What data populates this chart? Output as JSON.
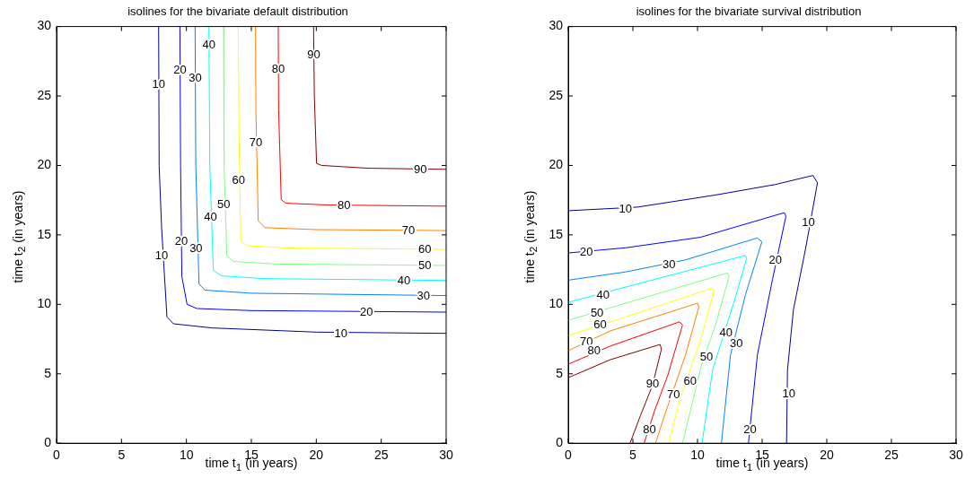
{
  "chart_data": [
    {
      "type": "line",
      "title": "isolines for the bivariate default distribution",
      "xlabel": "time t$_{1}$ (in years)",
      "ylabel": "time t$_{2}$ (in years)",
      "xlim": [
        0,
        30
      ],
      "ylim": [
        0,
        30
      ],
      "xticks": [
        0,
        5,
        10,
        15,
        20,
        25,
        30
      ],
      "yticks": [
        0,
        5,
        10,
        15,
        20,
        25,
        30
      ],
      "series": [
        {
          "color": "#00008f",
          "x": [
            7.86,
            7.9,
            8.09,
            8.5,
            9.0,
            12,
            20,
            30
          ],
          "values": [
            30,
            20,
            15.5,
            9.1,
            8.6,
            8.3,
            8.0,
            7.91
          ]
        },
        {
          "color": "#0000ff",
          "x": [
            9.5,
            9.55,
            9.65,
            10.05,
            10.8,
            15,
            30
          ],
          "values": [
            30,
            20,
            12,
            10.0,
            9.7,
            9.55,
            9.44
          ]
        },
        {
          "color": "#0080ff",
          "x": [
            10.67,
            10.72,
            10.97,
            11.43,
            15,
            30
          ],
          "values": [
            30,
            20,
            11.46,
            11.02,
            10.8,
            10.63
          ]
        },
        {
          "color": "#00ffff",
          "x": [
            11.73,
            11.8,
            12.07,
            12.7,
            16,
            30
          ],
          "values": [
            30,
            20,
            12.44,
            12.05,
            11.85,
            11.72
          ]
        },
        {
          "color": "#80ff80",
          "x": [
            12.86,
            12.9,
            13.11,
            13.62,
            17,
            30
          ],
          "values": [
            30,
            20,
            13.52,
            13.09,
            12.9,
            12.8
          ]
        },
        {
          "color": "#ffff00",
          "x": [
            13.99,
            14.05,
            14.19,
            14.65,
            18,
            30
          ],
          "values": [
            30,
            22,
            14.61,
            14.22,
            14.05,
            13.96
          ]
        },
        {
          "color": "#ff8000",
          "x": [
            15.32,
            15.35,
            15.53,
            16.04,
            20,
            30
          ],
          "values": [
            30,
            24,
            16.02,
            15.52,
            15.38,
            15.31
          ]
        },
        {
          "color": "#ff0000",
          "x": [
            17.07,
            17.1,
            17.3,
            17.65,
            21,
            30
          ],
          "values": [
            30,
            24,
            17.54,
            17.28,
            17.15,
            17.07
          ]
        },
        {
          "color": "#800000",
          "x": [
            19.79,
            19.85,
            20.02,
            20.41,
            24,
            30
          ],
          "values": [
            30,
            25,
            20.15,
            20.0,
            19.8,
            19.72
          ]
        }
      ],
      "annotations": [
        {
          "text": "10",
          "x": 7.86,
          "y": 25.9
        },
        {
          "text": "10",
          "x": 8.09,
          "y": 13.52
        },
        {
          "text": "10",
          "x": 21.9,
          "y": 7.96
        },
        {
          "text": "20",
          "x": 9.5,
          "y": 26.9
        },
        {
          "text": "20",
          "x": 9.6,
          "y": 14.61
        },
        {
          "text": "20",
          "x": 23.87,
          "y": 9.5
        },
        {
          "text": "30",
          "x": 10.68,
          "y": 26.35
        },
        {
          "text": "30",
          "x": 10.74,
          "y": 14.07
        },
        {
          "text": "30",
          "x": 28.25,
          "y": 10.65
        },
        {
          "text": "40",
          "x": 11.74,
          "y": 28.74
        },
        {
          "text": "40",
          "x": 11.85,
          "y": 16.35
        },
        {
          "text": "40",
          "x": 26.75,
          "y": 11.76
        },
        {
          "text": "50",
          "x": 12.88,
          "y": 17.22
        },
        {
          "text": "50",
          "x": 28.36,
          "y": 12.83
        },
        {
          "text": "60",
          "x": 14.02,
          "y": 18.96
        },
        {
          "text": "60",
          "x": 28.36,
          "y": 14.0
        },
        {
          "text": "70",
          "x": 15.35,
          "y": 21.68
        },
        {
          "text": "70",
          "x": 27.1,
          "y": 15.33
        },
        {
          "text": "80",
          "x": 17.08,
          "y": 27.0
        },
        {
          "text": "80",
          "x": 22.14,
          "y": 17.14
        },
        {
          "text": "90",
          "x": 19.8,
          "y": 27.98
        },
        {
          "text": "90",
          "x": 28.02,
          "y": 19.75
        }
      ]
    },
    {
      "type": "line",
      "title": "isolines for the bivariate survival distribution",
      "xlabel": "time t$_{1}$ (in years)",
      "ylabel": "time t$_{2}$ (in years)",
      "xlim": [
        0,
        30
      ],
      "ylim": [
        0,
        30
      ],
      "xticks": [
        0,
        5,
        10,
        15,
        20,
        25,
        30
      ],
      "yticks": [
        0,
        5,
        10,
        15,
        20,
        25,
        30
      ],
      "series": [
        {
          "color": "#00008f",
          "x": [
            0,
            5.36,
            11.39,
            16.03,
            18.93,
            19.28,
            18.35,
            17.42,
            16.96,
            16.89
          ],
          "values": [
            16.74,
            17.0,
            17.87,
            18.63,
            19.28,
            18.75,
            13.96,
            9.61,
            5.26,
            0
          ]
        },
        {
          "color": "#0000ff",
          "x": [
            0,
            4.43,
            10.23,
            16.72,
            16.84,
            15.8,
            14.63,
            13.94
          ],
          "values": [
            13.7,
            14.07,
            14.83,
            16.6,
            16.35,
            11.79,
            6.35,
            0
          ]
        },
        {
          "color": "#0080ff",
          "x": [
            0,
            4.43,
            9.07,
            14.63,
            14.98,
            13.71,
            12.55,
            11.85
          ],
          "values": [
            11.74,
            12.33,
            13.2,
            14.78,
            14.5,
            10.7,
            6.35,
            0
          ]
        },
        {
          "color": "#00ffff",
          "x": [
            0,
            5.0,
            13.71,
            13.8,
            12.78,
            11.16,
            10.35
          ],
          "values": [
            10.15,
            11.38,
            13.52,
            13.3,
            10.04,
            5.26,
            0
          ]
        },
        {
          "color": "#80ff80",
          "x": [
            0,
            4.5,
            12.32,
            12.44,
            11.39,
            10.3,
            8.84
          ],
          "values": [
            8.85,
            10.1,
            12.26,
            12.0,
            8.52,
            5.6,
            0
          ]
        },
        {
          "color": "#ffff00",
          "x": [
            0,
            3.27,
            11.16,
            11.27,
            10.23,
            8.61,
            7.79
          ],
          "values": [
            7.76,
            8.74,
            11.17,
            10.91,
            7.43,
            3.09,
            0
          ]
        },
        {
          "color": "#ff8000",
          "x": [
            0,
            3.27,
            10.0,
            10.11,
            9.07,
            7.45,
            6.75
          ],
          "values": [
            6.67,
            8.09,
            10.08,
            9.82,
            6.35,
            2.0,
            0
          ]
        },
        {
          "color": "#ff0000",
          "x": [
            0,
            3.27,
            8.61,
            8.84,
            7.68,
            6.7,
            5.87
          ],
          "values": [
            5.69,
            7.0,
            8.74,
            8.52,
            4.83,
            2.4,
            0
          ]
        },
        {
          "color": "#800000",
          "x": [
            0,
            3.27,
            7.1,
            7.21,
            6.52,
            5.59,
            4.78
          ],
          "values": [
            4.72,
            6.02,
            7.11,
            6.78,
            4.17,
            2.0,
            0
          ]
        }
      ],
      "annotations": [
        {
          "text": "10",
          "x": 4.43,
          "y": 16.9
        },
        {
          "text": "10",
          "x": 18.58,
          "y": 15.91
        },
        {
          "text": "10",
          "x": 17.07,
          "y": 3.63
        },
        {
          "text": "20",
          "x": 1.41,
          "y": 13.8
        },
        {
          "text": "20",
          "x": 16.03,
          "y": 13.2
        },
        {
          "text": "20",
          "x": 14.06,
          "y": 1.02
        },
        {
          "text": "30",
          "x": 7.79,
          "y": 12.9
        },
        {
          "text": "30",
          "x": 13.01,
          "y": 7.22
        },
        {
          "text": "40",
          "x": 2.69,
          "y": 10.7
        },
        {
          "text": "40",
          "x": 12.2,
          "y": 7.98
        },
        {
          "text": "50",
          "x": 2.23,
          "y": 9.44
        },
        {
          "text": "50",
          "x": 10.7,
          "y": 6.24
        },
        {
          "text": "60",
          "x": 2.46,
          "y": 8.56
        },
        {
          "text": "60",
          "x": 9.42,
          "y": 4.5
        },
        {
          "text": "70",
          "x": 1.41,
          "y": 7.32
        },
        {
          "text": "70",
          "x": 8.14,
          "y": 3.52
        },
        {
          "text": "80",
          "x": 2.0,
          "y": 6.67
        },
        {
          "text": "80",
          "x": 6.28,
          "y": 1.02
        },
        {
          "text": "90",
          "x": 6.52,
          "y": 4.28
        }
      ]
    }
  ]
}
